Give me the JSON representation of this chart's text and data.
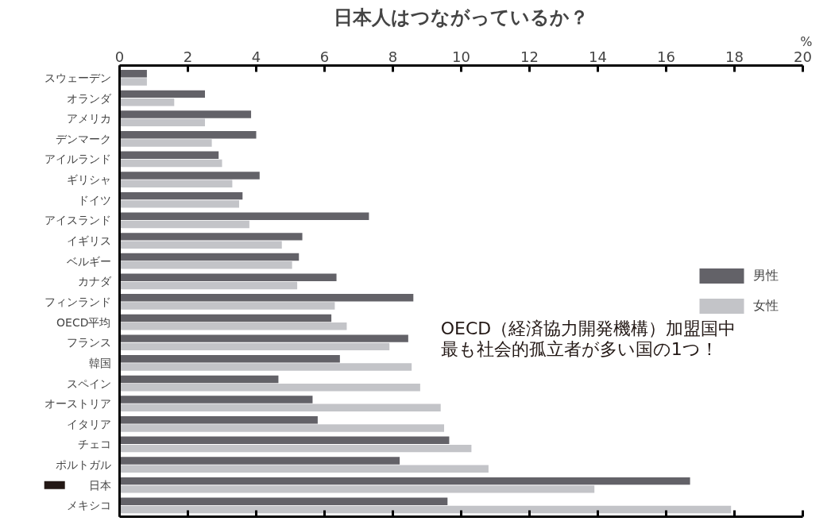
{
  "chart_data": {
    "type": "bar",
    "orientation": "horizontal",
    "title": "日本人はつながっているか？",
    "xlabel": "%",
    "categories": [
      "スウェーデン",
      "オランダ",
      "アメリカ",
      "デンマーク",
      "アイルランド",
      "ギリシャ",
      "ドイツ",
      "アイスランド",
      "イギリス",
      "ベルギー",
      "カナダ",
      "フィンランド",
      "OECD平均",
      "フランス",
      "韓国",
      "スペイン",
      "オーストリア",
      "イタリア",
      "チェコ",
      "ポルトガル",
      "日本",
      "メキシコ"
    ],
    "series": [
      {
        "name": "男性",
        "color": "#636268",
        "values": [
          0.8,
          2.5,
          3.85,
          4.0,
          2.9,
          4.1,
          3.6,
          7.3,
          5.35,
          5.25,
          6.35,
          8.6,
          6.2,
          8.45,
          6.45,
          4.65,
          5.65,
          5.8,
          9.65,
          8.2,
          16.7,
          9.6
        ]
      },
      {
        "name": "女性",
        "color": "#c3c4c8",
        "values": [
          0.8,
          1.6,
          2.5,
          2.7,
          3.0,
          3.3,
          3.5,
          3.8,
          4.75,
          5.05,
          5.2,
          6.3,
          6.65,
          7.9,
          8.55,
          8.8,
          9.4,
          9.5,
          10.3,
          10.8,
          13.9,
          17.9
        ]
      }
    ],
    "xlim": [
      0,
      20
    ],
    "xticks": [
      0,
      2,
      4,
      6,
      8,
      10,
      12,
      14,
      16,
      18,
      20
    ],
    "annotations": [
      "OECD（経済協力開発機構）加盟国中",
      "最も社会的孤立者が多い国の1つ！"
    ],
    "legend": "right",
    "grid": false
  }
}
